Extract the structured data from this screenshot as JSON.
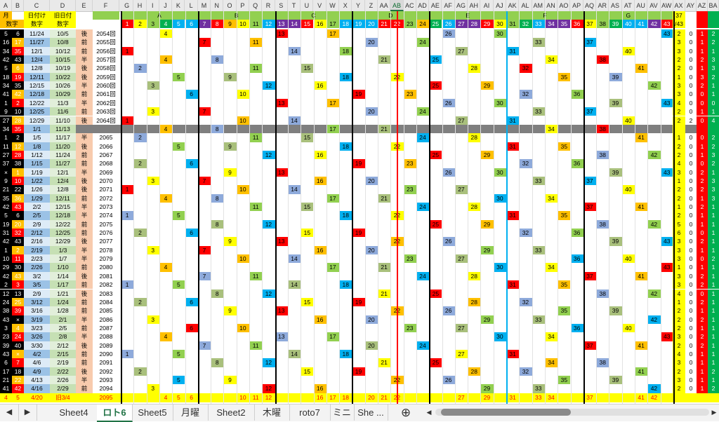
{
  "columns": [
    "A",
    "B",
    "C",
    "D",
    "E",
    "F",
    "G",
    "H",
    "I",
    "J",
    "K",
    "L",
    "M",
    "N",
    "O",
    "P",
    "Q",
    "R",
    "S",
    "T",
    "U",
    "V",
    "W",
    "X",
    "Y",
    "Z",
    "AA",
    "AB",
    "AC",
    "AD",
    "AE",
    "AF",
    "AG",
    "AH",
    "AI",
    "AJ",
    "AK",
    "AL",
    "AM",
    "AN",
    "AO",
    "AP",
    "AQ",
    "AR",
    "AS",
    "AT",
    "AU",
    "AV",
    "AW",
    "AX",
    "AY",
    "AZ",
    "BA"
  ],
  "selected_column": "AB",
  "header": {
    "row1": [
      "月",
      "日付け",
      "旧日付"
    ],
    "row2": [
      "数字",
      "数字",
      "数字"
    ],
    "groups": [
      "A",
      "B",
      "C",
      "D",
      "E",
      "F",
      "G"
    ],
    "numbers": [
      "1",
      "2",
      "3",
      "4",
      "5",
      "6",
      "7",
      "8",
      "9",
      "10",
      "11",
      "12",
      "13",
      "14",
      "15",
      "16",
      "17",
      "18",
      "19",
      "20",
      "21",
      "22",
      "23",
      "24",
      "25",
      "26",
      "27",
      "28",
      "29",
      "30",
      "31",
      "32",
      "33",
      "34",
      "35",
      "36",
      "37",
      "38",
      "39",
      "40",
      "41",
      "42",
      "43"
    ],
    "ay_top": "37",
    "ay_sub": "/43"
  },
  "rows": [
    {
      "a": "5",
      "b": "6",
      "c": "11/24",
      "d": "10/5",
      "e": "後",
      "f": "2054回"
    },
    {
      "a": "16",
      "b": "17",
      "c": "11/27",
      "d": "10/8",
      "e": "前",
      "f": "2055回"
    },
    {
      "a": "34",
      "b": "35",
      "c": "12/1",
      "d": "10/12",
      "e": "前",
      "f": "2056回"
    },
    {
      "a": "42",
      "b": "43",
      "c": "12/4",
      "d": "10/15",
      "e": "半",
      "f": "2057回"
    },
    {
      "a": "5",
      "b": "6",
      "c": "12/8",
      "d": "10/19",
      "e": "後",
      "f": "2058回"
    },
    {
      "a": "18",
      "b": "19",
      "c": "12/11",
      "d": "10/22",
      "e": "後",
      "f": "2059回"
    },
    {
      "a": "34",
      "b": "35",
      "c": "12/15",
      "d": "10/26",
      "e": "半",
      "f": "2060回"
    },
    {
      "a": "41",
      "b": "42",
      "c": "12/18",
      "d": "10/29",
      "e": "前",
      "f": "2061回"
    },
    {
      "a": "1",
      "b": "2",
      "c": "12/22",
      "d": "11/3",
      "e": "半",
      "f": "2062回"
    },
    {
      "a": "9",
      "b": "10",
      "c": "12/25",
      "d": "11/6",
      "e": "前",
      "f": "2063回"
    },
    {
      "a": "27",
      "b": "28",
      "c": "12/29",
      "d": "11/10",
      "e": "後",
      "f": "2064回"
    },
    {
      "a": "34",
      "b": "35",
      "c": "1/1",
      "d": "11/13",
      "e": "",
      "f": ""
    },
    {
      "a": "1",
      "b": "2",
      "c": "1/5",
      "d": "11/17",
      "e": "半",
      "f": "2065"
    },
    {
      "a": "11",
      "b": "12",
      "c": "1/8",
      "d": "11/20",
      "e": "後",
      "f": "2066"
    },
    {
      "a": "27",
      "b": "28",
      "c": "1/12",
      "d": "11/24",
      "e": "前",
      "f": "2067"
    },
    {
      "a": "37",
      "b": "38",
      "c": "1/15",
      "d": "11/27",
      "e": "前",
      "f": "2068"
    },
    {
      "a": "×",
      "b": "1",
      "c": "1/19",
      "d": "12/1",
      "e": "半",
      "f": "2069"
    },
    {
      "a": "9",
      "b": "10",
      "c": "1/22",
      "d": "12/4",
      "e": "後",
      "f": "2070"
    },
    {
      "a": "21",
      "b": "22",
      "c": "1/26",
      "d": "12/8",
      "e": "後",
      "f": "2071"
    },
    {
      "a": "35",
      "b": "36",
      "c": "1/29",
      "d": "12/11",
      "e": "前",
      "f": "2072"
    },
    {
      "a": "42",
      "b": "43",
      "c": "2/2",
      "d": "12/15",
      "e": "半",
      "f": "2073"
    },
    {
      "a": "5",
      "b": "6",
      "c": "2/5",
      "d": "12/18",
      "e": "半",
      "f": "2074"
    },
    {
      "a": "19",
      "b": "20",
      "c": "2/9",
      "d": "12/22",
      "e": "前",
      "f": "2075"
    },
    {
      "a": "31",
      "b": "32",
      "c": "2/12",
      "d": "12/25",
      "e": "前",
      "f": "2076"
    },
    {
      "a": "42",
      "b": "43",
      "c": "2/16",
      "d": "12/29",
      "e": "後",
      "f": "2077"
    },
    {
      "a": "1",
      "b": "2",
      "c": "2/19",
      "d": "1/3",
      "e": "半",
      "f": "2078"
    },
    {
      "a": "10",
      "b": "11",
      "c": "2/23",
      "d": "1/7",
      "e": "半",
      "f": "2079"
    },
    {
      "a": "29",
      "b": "30",
      "c": "2/26",
      "d": "1/10",
      "e": "前",
      "f": "2080"
    },
    {
      "a": "42",
      "b": "43",
      "c": "3/2",
      "d": "1/14",
      "e": "後",
      "f": "2081"
    },
    {
      "a": "2",
      "b": "3",
      "c": "3/5",
      "d": "1/17",
      "e": "前",
      "f": "2082"
    },
    {
      "a": "12",
      "b": "13",
      "c": "2/9",
      "d": "1/21",
      "e": "後",
      "f": "2083"
    },
    {
      "a": "24",
      "b": "25",
      "c": "3/12",
      "d": "1/24",
      "e": "前",
      "f": "2084"
    },
    {
      "a": "38",
      "b": "39",
      "c": "3/16",
      "d": "1/28",
      "e": "前",
      "f": "2085"
    },
    {
      "a": "43",
      "b": "×",
      "c": "3/19",
      "d": "2/1",
      "e": "半",
      "f": "2086"
    },
    {
      "a": "3",
      "b": "4",
      "c": "3/23",
      "d": "2/5",
      "e": "前",
      "f": "2087"
    },
    {
      "a": "23",
      "b": "24",
      "c": "3/26",
      "d": "2/8",
      "e": "半",
      "f": "2088"
    },
    {
      "a": "39",
      "b": "40",
      "c": "3/30",
      "d": "2/12",
      "e": "後",
      "f": "2089"
    },
    {
      "a": "43",
      "b": "×",
      "c": "4/2",
      "d": "2/15",
      "e": "前",
      "f": "2090"
    },
    {
      "a": "6",
      "b": "7",
      "c": "4/6",
      "d": "2/19",
      "e": "前",
      "f": "2091"
    },
    {
      "a": "17",
      "b": "18",
      "c": "4/9",
      "d": "2/22",
      "e": "後",
      "f": "2092"
    },
    {
      "a": "21",
      "b": "22",
      "c": "4/13",
      "d": "2/26",
      "e": "半",
      "f": "2093"
    },
    {
      "a": "41",
      "b": "42",
      "c": "4/16",
      "d": "2/29",
      "e": "前",
      "f": "2094"
    }
  ],
  "summary": {
    "a": "4",
    "b": "5",
    "c": "4/20",
    "d": "旧3/4",
    "f": "2095",
    "vals": [
      "4",
      "5",
      "6",
      "10",
      "11",
      "12",
      "16",
      "17",
      "18",
      "20",
      "21",
      "22",
      "27",
      "29",
      "31",
      "33",
      "34",
      "37",
      "41",
      "42"
    ]
  },
  "right_counts": [
    [
      "2",
      "0",
      "1",
      "2"
    ],
    [
      "3",
      "0",
      "1",
      "2"
    ],
    [
      "3",
      "0",
      "1",
      "1"
    ],
    [
      "2",
      "0",
      "2",
      "3"
    ],
    [
      "2",
      "0",
      "1",
      "3"
    ],
    [
      "1",
      "0",
      "3",
      "2"
    ],
    [
      "3",
      "0",
      "2",
      "1"
    ],
    [
      "3",
      "0",
      "0",
      "1"
    ],
    [
      "4",
      "0",
      "0",
      "0"
    ],
    [
      "2",
      "0",
      "1",
      "1"
    ],
    [
      "2",
      "2",
      "0",
      "4"
    ],
    [
      "",
      "",
      " ",
      ""
    ],
    [
      "1",
      "0",
      "0",
      "2"
    ],
    [
      "2",
      "0",
      "1",
      "2"
    ],
    [
      "2",
      "0",
      "1",
      "3"
    ],
    [
      "4",
      "0",
      "0",
      "2"
    ],
    [
      "3",
      "0",
      "2",
      "1"
    ],
    [
      "1",
      "0",
      "2",
      "3"
    ],
    [
      "2",
      "0",
      "2",
      "3"
    ],
    [
      "2",
      "0",
      "1",
      "3"
    ],
    [
      "1",
      "0",
      "2",
      "1"
    ],
    [
      "2",
      "0",
      "1",
      "1"
    ],
    [
      "5",
      "0",
      "1",
      "1"
    ],
    [
      "6",
      "0",
      "0",
      "1"
    ],
    [
      "3",
      "0",
      "2",
      "1"
    ],
    [
      "3",
      "0",
      "1",
      "1"
    ],
    [
      "3",
      "0",
      "0",
      "2"
    ],
    [
      "1",
      "0",
      "1",
      "1"
    ],
    [
      "3",
      "0",
      "2",
      "1"
    ],
    [
      "3",
      "0",
      "2",
      "1"
    ],
    [
      "4",
      "0",
      "0",
      "1"
    ],
    [
      "1",
      "0",
      "2",
      "1"
    ],
    [
      "2",
      "0",
      "1",
      "1"
    ],
    [
      "2",
      "0",
      "2",
      "1"
    ],
    [
      "2",
      "0",
      "1",
      "1"
    ],
    [
      "3",
      "0",
      "2",
      "1"
    ],
    [
      "2",
      "0",
      "2",
      "1"
    ],
    [
      "4",
      "0",
      "1",
      "1"
    ],
    [
      "3",
      "0",
      "1",
      "1"
    ],
    [
      "2",
      "0",
      "1",
      "2"
    ],
    [
      "3",
      "0",
      "1",
      "1"
    ],
    [
      "2",
      "0",
      "1",
      "2"
    ]
  ],
  "tabs": [
    "Sheet4",
    "ロト6",
    "Sheet5",
    "月曜",
    "Sheet2",
    "木曜",
    "roto7",
    "ミニ",
    "She ..."
  ],
  "active_tab": "ロト6",
  "colors": {
    "yellow": "#ffff00",
    "orange": "#ffc000",
    "green": "#92d050",
    "blue": "#00b0f0",
    "red": "#ff0000",
    "pink": "#f2dcdb",
    "gray": "#d9d9d9",
    "olive": "#a9c07c",
    "steel": "#8eaadb",
    "purple": "#7030a0"
  }
}
